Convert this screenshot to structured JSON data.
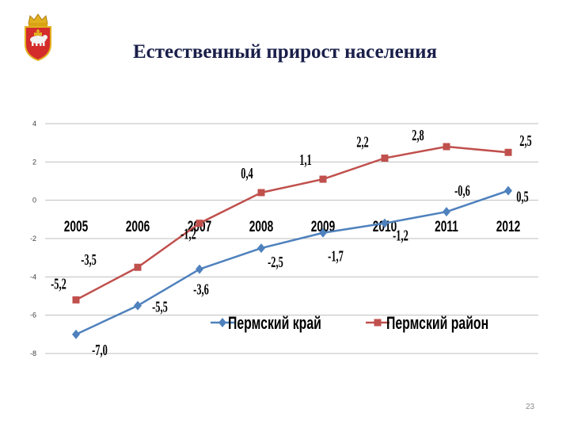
{
  "slide": {
    "title": "Естественный прирост населения",
    "page_number": "23",
    "emblem_icon": "regional-coat-of-arms-icon"
  },
  "colors": {
    "title": "#1a1f4a",
    "series_blue": "#4f81bd",
    "series_red": "#c0504d",
    "grid": "#bfbfbf",
    "axis_text": "#000000"
  },
  "chart_data": {
    "type": "line",
    "categories": [
      "2005",
      "2006",
      "2007",
      "2008",
      "2009",
      "2010",
      "2011",
      "2012"
    ],
    "series": [
      {
        "name": "Пермский край",
        "marker": "diamond",
        "color": "#4f81bd",
        "values": [
          -7.0,
          -5.5,
          -3.6,
          -2.5,
          -1.7,
          -1.2,
          -0.6,
          0.5
        ],
        "labels": [
          "-7,0",
          "-5,5",
          "-3,6",
          "-2,5",
          "-1,7",
          "-1,2",
          "-0,6",
          "0,5"
        ]
      },
      {
        "name": "Пермский район",
        "marker": "square",
        "color": "#c0504d",
        "values": [
          -5.2,
          -3.5,
          -1.2,
          0.4,
          1.1,
          2.2,
          2.8,
          2.5
        ],
        "labels": [
          "-5,2",
          "-3,5",
          "-1,2",
          "0,4",
          "1,1",
          "2,2",
          "2,8",
          "2,5"
        ]
      }
    ],
    "ylim": [
      -8,
      4
    ],
    "yticks": [
      -8,
      -6,
      -4,
      -2,
      0,
      2,
      4
    ],
    "ytick_labels": [
      "-8",
      "-6",
      "-4",
      "-2",
      "0",
      "2",
      "4"
    ],
    "grid": true,
    "legend_position": "bottom-right"
  }
}
